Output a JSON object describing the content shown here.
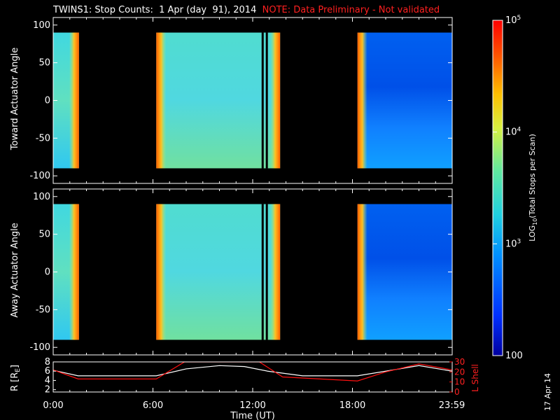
{
  "title": {
    "main": "TWINS1: Stop Counts:  1 Apr (day  91), 2014",
    "note": "NOTE: Data Preliminary - Not validated"
  },
  "side_date": "17 Apr 14",
  "colors": {
    "white_trace": "#ffffff",
    "red_trace": "#ff1010",
    "note": "#ff2020",
    "frame": "#ffffff",
    "spike_line": "#000000"
  },
  "chart_data": [
    {
      "type": "heatmap",
      "name": "toward",
      "ylabel": "Toward Actuator Angle",
      "ylim": [
        -110,
        110
      ],
      "y_ticks": [
        100,
        50,
        0,
        -50,
        -100
      ],
      "angle_range": [
        -90,
        90
      ],
      "x_unit": "hours UT",
      "xlim": [
        0,
        24
      ],
      "data_blocks": [
        {
          "start": 0.0,
          "end": 1.55
        },
        {
          "start": 6.2,
          "end": 13.65
        },
        {
          "start": 18.3,
          "end": 24.0
        }
      ],
      "black_lines": [
        12.6,
        12.85
      ]
    },
    {
      "type": "heatmap",
      "name": "away",
      "ylabel": "Away Actuator Angle",
      "ylim": [
        -110,
        110
      ],
      "y_ticks": [
        100,
        50,
        0,
        -50,
        -100
      ],
      "angle_range": [
        -90,
        90
      ],
      "x_unit": "hours UT",
      "xlim": [
        0,
        24
      ],
      "data_blocks": [
        {
          "start": 0.0,
          "end": 1.55
        },
        {
          "start": 6.2,
          "end": 13.65
        },
        {
          "start": 18.3,
          "end": 24.0
        }
      ],
      "black_lines": [
        12.6,
        12.85
      ]
    },
    {
      "type": "line",
      "name": "orbit",
      "xlabel": "Time (UT)",
      "x_ticks": [
        0,
        6,
        12,
        18,
        23.98
      ],
      "x_tick_labels": [
        "0:00",
        "6:00",
        "12:00",
        "18:00",
        "23:59"
      ],
      "left_axis": {
        "label": "R [R",
        "label_sub": "E",
        "label_end": "]",
        "ylim": [
          1.5,
          8
        ],
        "ticks": [
          2,
          4,
          6,
          8
        ]
      },
      "right_axis": {
        "label": "L Shell",
        "ylim": [
          0,
          30
        ],
        "ticks": [
          0,
          10,
          20,
          30
        ]
      },
      "series": [
        {
          "axis": "left",
          "x": [
            0.0,
            1.5,
            6.2,
            8.0,
            10.0,
            11.5,
            12.9,
            15.0,
            18.3,
            20.0,
            22.0,
            24.0
          ],
          "y": [
            6.2,
            5.0,
            5.0,
            6.5,
            7.2,
            7.0,
            6.0,
            5.0,
            5.0,
            6.0,
            7.2,
            6.0
          ]
        },
        {
          "axis": "right",
          "x": [
            0.0,
            1.5,
            6.2,
            7.9,
            12.4,
            13.8,
            18.3,
            20.0,
            22.0,
            24.0
          ],
          "y": [
            22,
            13,
            13,
            30,
            30,
            15,
            11,
            20,
            28,
            22
          ]
        }
      ]
    },
    {
      "type": "heatmap",
      "name": "colorbar",
      "zlabel_pre": "LOG",
      "zlabel_sub": "10",
      "zlabel_post": "(Total Stops per Scan)",
      "scale": "log",
      "zlim": [
        100,
        100000
      ],
      "ticks": [
        {
          "value": 100,
          "base": "100",
          "exp": ""
        },
        {
          "value": 1000,
          "base": "10",
          "exp": "3"
        },
        {
          "value": 10000,
          "base": "10",
          "exp": "4"
        },
        {
          "value": 100000,
          "base": "10",
          "exp": "5"
        }
      ]
    }
  ]
}
